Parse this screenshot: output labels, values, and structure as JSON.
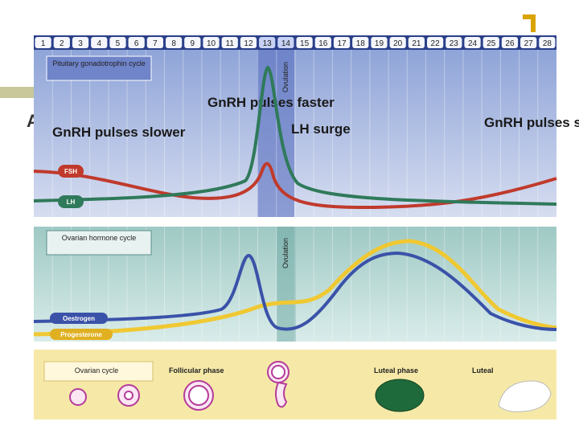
{
  "days": [
    1,
    2,
    3,
    4,
    5,
    6,
    7,
    8,
    9,
    10,
    11,
    12,
    13,
    14,
    15,
    16,
    17,
    18,
    19,
    20,
    21,
    22,
    23,
    24,
    25,
    26,
    27,
    28
  ],
  "pituitary": {
    "label": "Pituitary gonadotrophin cycle",
    "ovulation": "Ovulation",
    "left_note": "GnRH pulses slower",
    "mid_note": "GnRH pulses faster",
    "surge": "LH surge",
    "right_note": "GnRH pulses slower",
    "fsh": "FSH",
    "lh": "LH"
  },
  "ovarian_hormone": {
    "label": "Ovarian hormone cycle",
    "ovulation": "Ovulation",
    "oestrogen": "Oestrogen",
    "progesterone": "Progesterone"
  },
  "ovarian_cycle": {
    "label": "Ovarian cycle",
    "follicular": "Follicular phase",
    "luteal_phase": "Luteal phase",
    "luteal": "Luteal"
  }
}
